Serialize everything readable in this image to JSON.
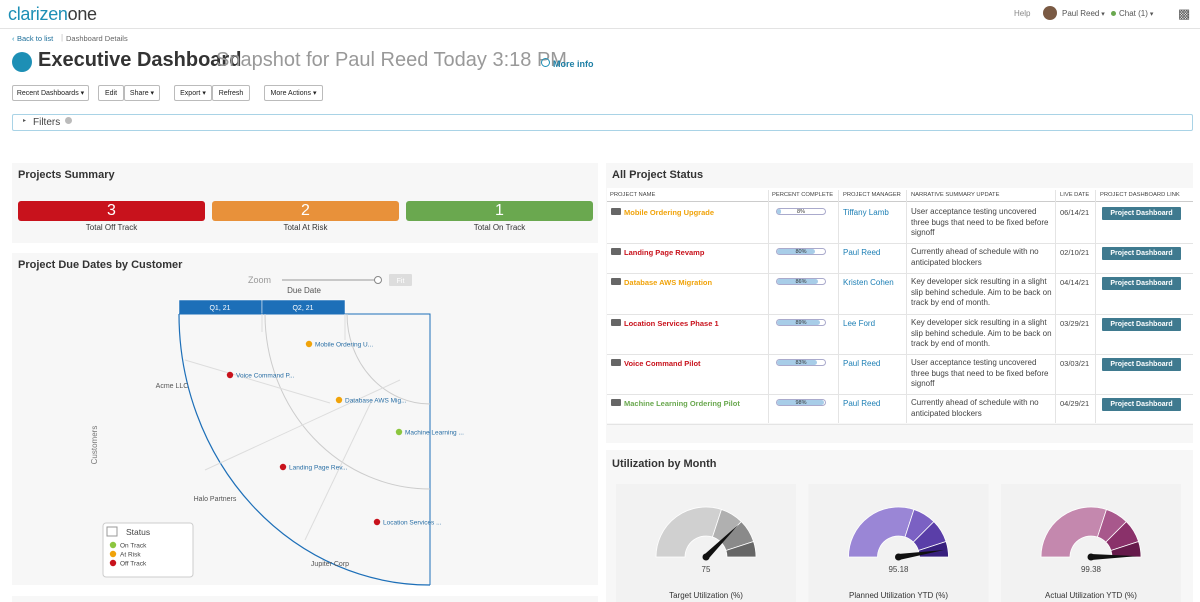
{
  "header": {
    "logo_brand": "clarizen",
    "logo_product": "one",
    "help": "Help",
    "user": "Paul Reed",
    "chat": "Chat (1)"
  },
  "breadcrumb": {
    "back": "Back to list",
    "current": "Dashboard Details"
  },
  "title": "Executive Dashboard",
  "subtitle": "Snapshot for Paul Reed Today 3:18 PM",
  "more_info": "More info",
  "toolbar": [
    "Recent Dashboards",
    "Edit",
    "Share",
    "Export",
    "Refresh",
    "More Actions"
  ],
  "filters": "Filters",
  "projects_summary": {
    "title": "Projects Summary",
    "items": [
      {
        "count": 3,
        "label": "Total Off Track",
        "color": "#c8121c"
      },
      {
        "count": 2,
        "label": "Total At Risk",
        "color": "#e8913a"
      },
      {
        "count": 1,
        "label": "Total On Track",
        "color": "#6aa84f"
      }
    ]
  },
  "due_dates": {
    "title": "Project Due Dates by Customer",
    "zoom": "Zoom",
    "fit": "Fit",
    "axis_x": "Due Date",
    "axis_y": "Customers",
    "quarters": [
      "Q1, 21",
      "Q2, 21"
    ],
    "customers": [
      "Acme LLC",
      "Halo Partners",
      "Jupiter Corp"
    ],
    "projects": [
      {
        "label": "Mobile Ordering U...",
        "color": "#f0a30a"
      },
      {
        "label": "Voice Command P...",
        "color": "#c8121c"
      },
      {
        "label": "Database AWS Mig...",
        "color": "#f0a30a"
      },
      {
        "label": "Machine Learning ...",
        "color": "#8cc63f"
      },
      {
        "label": "Landing Page Rev...",
        "color": "#c8121c"
      },
      {
        "label": "Location Services ...",
        "color": "#c8121c"
      }
    ],
    "legend": {
      "title": "Status",
      "items": [
        {
          "label": "On Track",
          "color": "#8cc63f"
        },
        {
          "label": "At Risk",
          "color": "#f0a30a"
        },
        {
          "label": "Off Track",
          "color": "#c8121c"
        }
      ]
    }
  },
  "project_status": {
    "title": "All Project Status",
    "columns": [
      "PROJECT NAME",
      "PERCENT COMPLETE",
      "PROJECT MANAGER",
      "NARRATIVE SUMMARY UPDATE",
      "LIVE DATE",
      "PROJECT DASHBOARD LINK"
    ],
    "percent_range": [
      0,
      100
    ],
    "rows": [
      {
        "name": "Mobile Ordering Upgrade",
        "color": "#f0a30a",
        "percent": 8,
        "percent_label": "8%",
        "manager": "Tiffany Lamb",
        "summary": "User acceptance testing uncovered three bugs that need to be fixed before signoff",
        "live_date": "06/14/21",
        "link": "Project Dashboard"
      },
      {
        "name": "Landing Page Revamp",
        "color": "#c8121c",
        "percent": 80,
        "percent_label": "80%",
        "manager": "Paul Reed",
        "summary": "Currently ahead of schedule with no anticipated blockers",
        "live_date": "02/10/21",
        "link": "Project Dashboard"
      },
      {
        "name": "Database AWS Migration",
        "color": "#f0a30a",
        "percent": 86,
        "percent_label": "86%",
        "manager": "Kristen Cohen",
        "summary": "Key developer sick resulting in a slight slip behind schedule. Aim to be back on track by end of month.",
        "live_date": "04/14/21",
        "link": "Project Dashboard"
      },
      {
        "name": "Location Services Phase 1",
        "color": "#c8121c",
        "percent": 89,
        "percent_label": "89%",
        "manager": "Lee Ford",
        "summary": "Key developer sick resulting in a slight slip behind schedule. Aim to be back on track by end of month.",
        "live_date": "03/29/21",
        "link": "Project Dashboard"
      },
      {
        "name": "Voice Command Pilot",
        "color": "#c8121c",
        "percent": 83,
        "percent_label": "83%",
        "manager": "Paul Reed",
        "summary": "User acceptance testing uncovered three bugs that need to be fixed before signoff",
        "live_date": "03/03/21",
        "link": "Project Dashboard"
      },
      {
        "name": "Machine Learning Ordering Pilot",
        "color": "#6aa84f",
        "percent": 98,
        "percent_label": "98%",
        "manager": "Paul Reed",
        "summary": "Currently ahead of schedule with no anticipated blockers",
        "live_date": "04/29/21",
        "link": "Project Dashboard"
      }
    ]
  },
  "utilization": {
    "title": "Utilization by Month",
    "range": [
      0,
      100
    ],
    "gauges": [
      {
        "value": 75,
        "label": "Target Utilization (%)",
        "colors": [
          "#d0d0d0",
          "#b0b0b0",
          "#8a8a8a",
          "#666666"
        ]
      },
      {
        "value": 95.18,
        "label": "Planned Utilization YTD (%)",
        "colors": [
          "#9a86d6",
          "#7b61c3",
          "#5a3ea8",
          "#38207e"
        ]
      },
      {
        "value": 99.38,
        "label": "Actual Utilization YTD (%)",
        "colors": [
          "#c488ae",
          "#a8588c",
          "#8a316a",
          "#661a4b"
        ]
      }
    ]
  }
}
